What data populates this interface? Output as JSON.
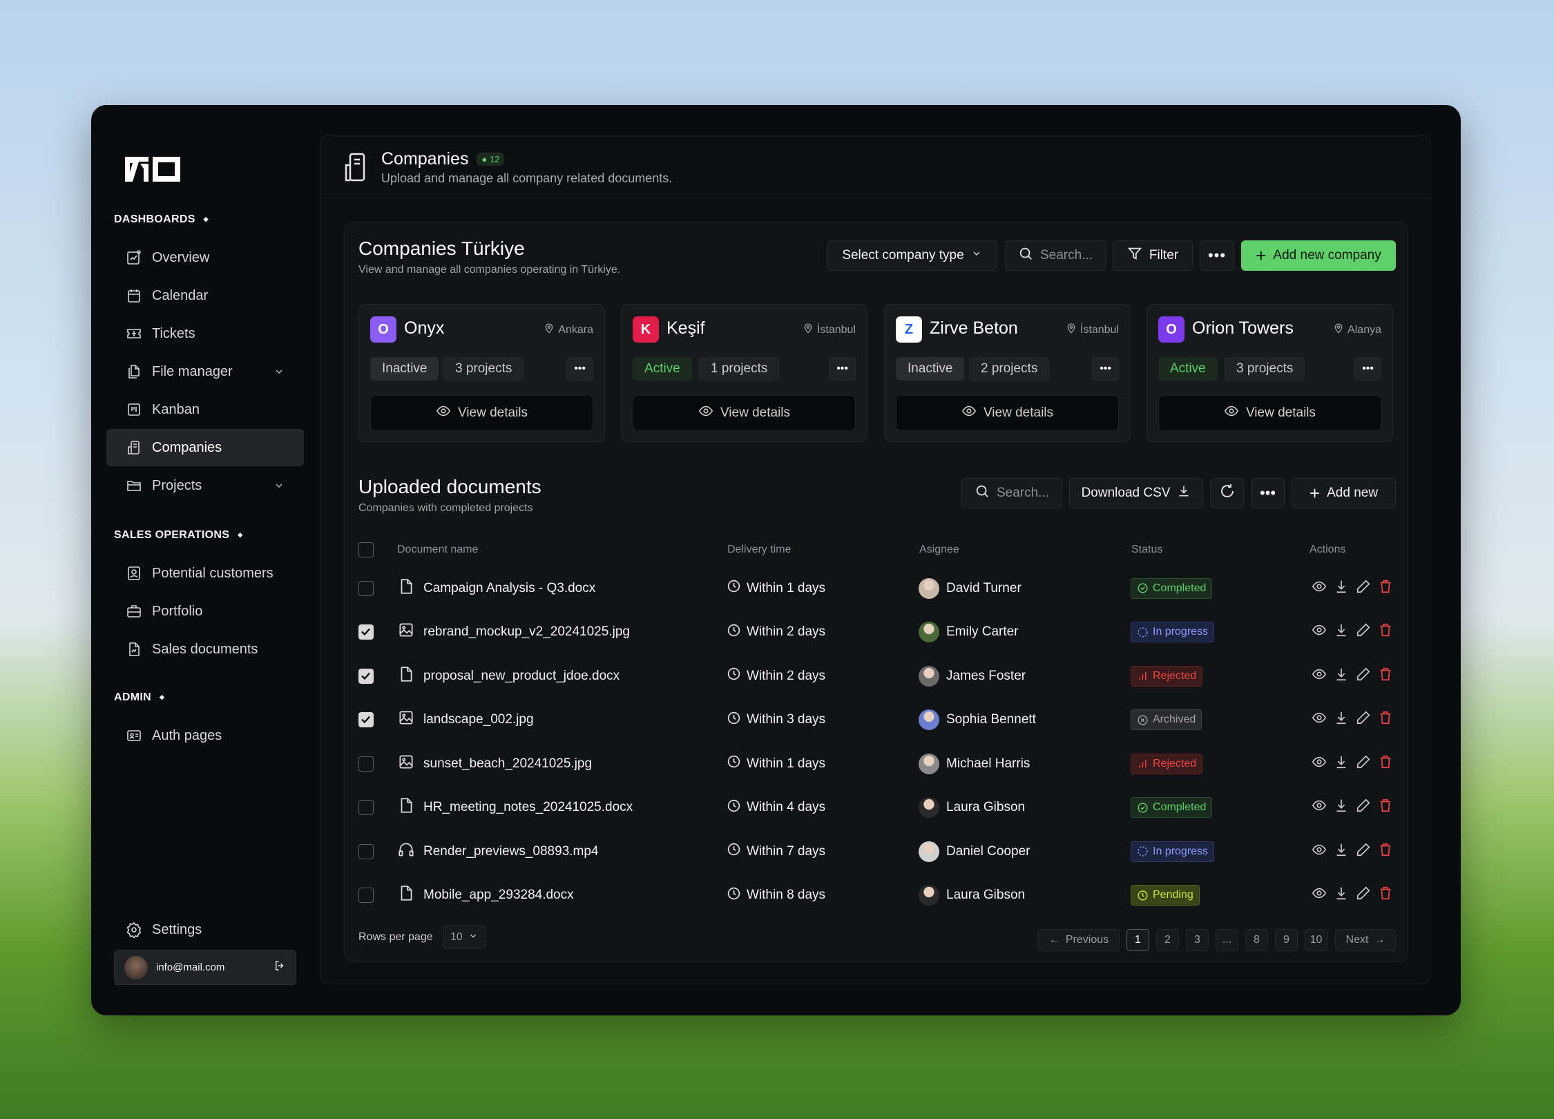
{
  "sidebar": {
    "sections": [
      {
        "label": "DASHBOARDS",
        "items": [
          {
            "label": "Overview",
            "icon": "chart-icon"
          },
          {
            "label": "Calendar",
            "icon": "calendar-icon"
          },
          {
            "label": "Tickets",
            "icon": "ticket-icon"
          },
          {
            "label": "File manager",
            "icon": "files-icon",
            "expandable": true
          },
          {
            "label": "Kanban",
            "icon": "kanban-icon"
          },
          {
            "label": "Companies",
            "icon": "building-icon",
            "active": true
          },
          {
            "label": "Projects",
            "icon": "folder-icon",
            "expandable": true
          }
        ]
      },
      {
        "label": "SALES OPERATIONS",
        "items": [
          {
            "label": "Potential customers",
            "icon": "contact-icon"
          },
          {
            "label": "Portfolio",
            "icon": "briefcase-icon"
          },
          {
            "label": "Sales documents",
            "icon": "document-icon"
          }
        ]
      },
      {
        "label": "ADMIN",
        "items": [
          {
            "label": "Auth pages",
            "icon": "id-card-icon"
          }
        ]
      }
    ],
    "settings": "Settings",
    "user_email": "info@mail.com"
  },
  "header": {
    "title": "Companies",
    "count": "12",
    "subtitle": "Upload and manage all company related documents."
  },
  "companies_section": {
    "title": "Companies Türkiye",
    "subtitle": "View and manage all companies operating in Türkiye.",
    "type_select": "Select company type",
    "search_placeholder": "Search...",
    "filter": "Filter",
    "add": "Add new company",
    "view_details": "View details",
    "cards": [
      {
        "name": "Onyx",
        "location": "Ankara",
        "status": "Inactive",
        "projects": "3 projects",
        "color": "#8b5cf6"
      },
      {
        "name": "Keşif",
        "location": "İstanbul",
        "status": "Active",
        "projects": "1 projects",
        "color": "#e11d48"
      },
      {
        "name": "Zirve Beton",
        "location": "İstanbul",
        "status": "Inactive",
        "projects": "2 projects",
        "color": "#ffffff"
      },
      {
        "name": "Orion Towers",
        "location": "Alanya",
        "status": "Active",
        "projects": "3 projects",
        "color": "#7c3aed"
      }
    ]
  },
  "documents": {
    "title": "Uploaded documents",
    "subtitle": "Companies with completed projects",
    "search_placeholder": "Search...",
    "download_csv": "Download CSV",
    "add_new": "Add new",
    "columns": [
      "Document name",
      "Delivery time",
      "Asignee",
      "Status",
      "Actions"
    ],
    "rows": [
      {
        "checked": false,
        "file": "Campaign Analysis - Q3.docx",
        "type": "doc",
        "delivery": "Within 1 days",
        "assignee": "David Turner",
        "status": "Completed"
      },
      {
        "checked": true,
        "file": "rebrand_mockup_v2_20241025.jpg",
        "type": "image",
        "delivery": "Within 2 days",
        "assignee": "Emily Carter",
        "status": "In progress"
      },
      {
        "checked": true,
        "file": "proposal_new_product_jdoe.docx",
        "type": "doc",
        "delivery": "Within 2 days",
        "assignee": "James Foster",
        "status": "Rejected"
      },
      {
        "checked": true,
        "file": "landscape_002.jpg",
        "type": "image",
        "delivery": "Within 3 days",
        "assignee": "Sophia Bennett",
        "status": "Archived"
      },
      {
        "checked": false,
        "file": "sunset_beach_20241025.jpg",
        "type": "image",
        "delivery": "Within 1 days",
        "assignee": "Michael Harris",
        "status": "Rejected"
      },
      {
        "checked": false,
        "file": "HR_meeting_notes_20241025.docx",
        "type": "doc",
        "delivery": "Within 4 days",
        "assignee": "Laura Gibson",
        "status": "Completed"
      },
      {
        "checked": false,
        "file": "Render_previews_08893.mp4",
        "type": "audio",
        "delivery": "Within 7 days",
        "assignee": "Daniel Cooper",
        "status": "In progress"
      },
      {
        "checked": false,
        "file": "Mobile_app_293284.docx",
        "type": "doc",
        "delivery": "Within 8 days",
        "assignee": "Laura Gibson",
        "status": "Pending"
      }
    ],
    "status_colors": {
      "Completed": [
        "#5fcf6a",
        "#1a2c1d"
      ],
      "In progress": [
        "#8b9bff",
        "#1b2440"
      ],
      "Rejected": [
        "#ef4444",
        "#3a1a1b"
      ],
      "Archived": [
        "#a0a0a0",
        "#2a2b2e"
      ],
      "Pending": [
        "#c8e83a",
        "#3b4417"
      ]
    },
    "rows_per_page_label": "Rows per page",
    "rows_per_page": "10",
    "pagination": {
      "previous": "Previous",
      "next": "Next",
      "pages": [
        "1",
        "2",
        "3",
        "...",
        "8",
        "9",
        "10"
      ],
      "current": "1"
    }
  }
}
